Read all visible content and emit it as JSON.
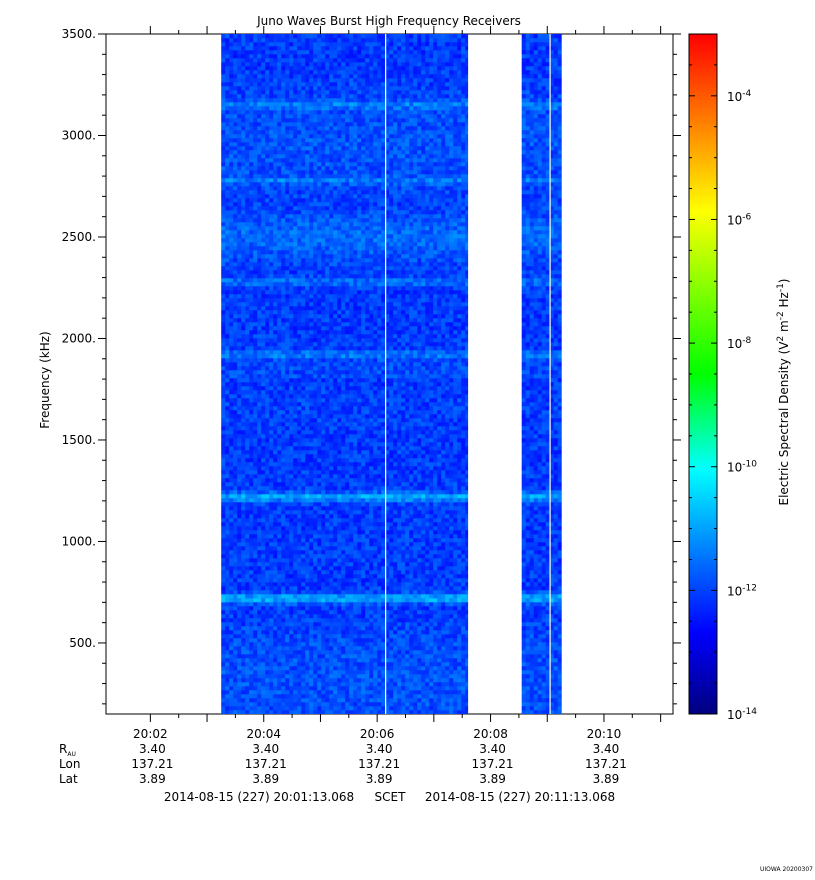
{
  "chart_data": {
    "type": "heatmap",
    "title": "Juno Waves Burst High Frequency Receivers",
    "ylabel": "Frequency (kHz)",
    "ylim": [
      150,
      3500
    ],
    "yticks": [
      500,
      1000,
      1500,
      2000,
      2500,
      3000,
      3500
    ],
    "ytick_labels": [
      "500.",
      "1000.",
      "1500.",
      "2000.",
      "2500.",
      "3000.",
      "3500."
    ],
    "x_range": [
      "20:01:13.068",
      "20:11:13.068"
    ],
    "xtick_labels": [
      "20:02",
      "20:04",
      "20:06",
      "20:08",
      "20:10"
    ],
    "xticks_minutes": [
      2,
      4,
      6,
      8,
      10
    ],
    "colorbar": {
      "label_main": "Electric Spectral Density (V",
      "label_exp1": "2",
      "label_mid": " m",
      "label_exp2": "-2",
      "label_mid2": " Hz",
      "label_exp3": "-1",
      "label_end": ")",
      "scale": "log",
      "range_exp": [
        -14,
        -3
      ],
      "ticks": [
        {
          "base": "10",
          "exp": "-4",
          "value_exp": -4
        },
        {
          "base": "10",
          "exp": "-6",
          "value_exp": -6
        },
        {
          "base": "10",
          "exp": "-8",
          "value_exp": -8
        },
        {
          "base": "10",
          "exp": "-10",
          "value_exp": -10
        },
        {
          "base": "10",
          "exp": "-12",
          "value_exp": -12
        },
        {
          "base": "10",
          "exp": "-14",
          "value_exp": -14
        }
      ]
    },
    "data_segments_minutes": [
      [
        3.25,
        7.6
      ],
      [
        8.55,
        9.25
      ]
    ],
    "background_level_exp": -12,
    "emission_bands_kHz": [
      {
        "freq": 3150,
        "level_exp": -11.2
      },
      {
        "freq": 2780,
        "level_exp": -11.3
      },
      {
        "freq": 2500,
        "level_exp": -11.5
      },
      {
        "freq": 2280,
        "level_exp": -11.4
      },
      {
        "freq": 1920,
        "level_exp": -11.3
      },
      {
        "freq": 1220,
        "level_exp": -10.8
      },
      {
        "freq": 720,
        "level_exp": -10.7
      }
    ],
    "ephemeris": {
      "rows": [
        {
          "label": "R",
          "sub": "AU",
          "values": [
            "3.40",
            "3.40",
            "3.40",
            "3.40",
            "3.40"
          ]
        },
        {
          "label": "Lon",
          "values": [
            "137.21",
            "137.21",
            "137.21",
            "137.21",
            "137.21"
          ]
        },
        {
          "label": "Lat",
          "values": [
            "3.89",
            "3.89",
            "3.89",
            "3.89",
            "3.89"
          ]
        }
      ]
    },
    "footer": {
      "start": "2014-08-15 (227) 20:01:13.068",
      "mid": "SCET",
      "end": "2014-08-15 (227) 20:11:13.068"
    },
    "credit": "UIOWA 20200307"
  },
  "colors": {
    "colormap": [
      "#00007f",
      "#0000ff",
      "#007fff",
      "#00ffff",
      "#00ff00",
      "#7fff00",
      "#ffff00",
      "#ff7f00",
      "#ff0000"
    ]
  }
}
